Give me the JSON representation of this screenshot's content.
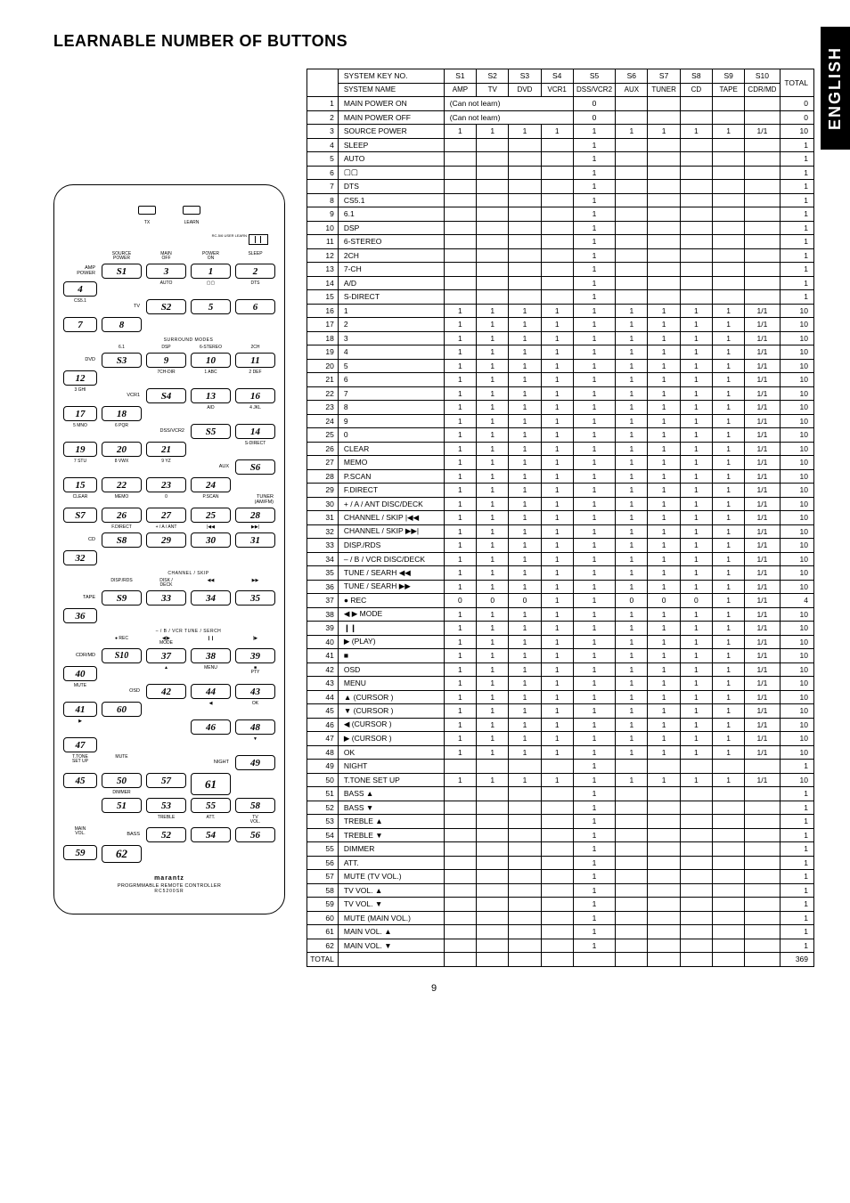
{
  "page_title": "LEARNABLE NUMBER OF BUTTONS",
  "language_tab": "ENGLISH",
  "page_number": "9",
  "remote_logo": "marantz",
  "remote_sub": "PROGRMMABLE REMOTE CONTROLLER",
  "remote_model": "RC5200SR",
  "remote_led1": "TX",
  "remote_led2": "LEARN",
  "remote_lcd_side": "RC-5/6\nUSER\nLEARN",
  "sys_header": {
    "keyno": "SYSTEM KEY NO.",
    "name": "SYSTEM NAME"
  },
  "sys_cols_no": [
    "S1",
    "S2",
    "S3",
    "S4",
    "S5",
    "S6",
    "S7",
    "S8",
    "S9",
    "S10"
  ],
  "sys_cols_nm": [
    "AMP",
    "TV",
    "DVD",
    "VCR1",
    "DSS/VCR2",
    "AUX",
    "TUNER",
    "CD",
    "TAPE",
    "CDR/MD"
  ],
  "total_label": "TOTAL",
  "cannot_learn": "(Can not learn)",
  "grand_total": "369",
  "remote_grid": [
    {
      "side": "AMP\nPOWER",
      "hdrs": [
        "SOURCE\nPOWER",
        "MAIN\nOFF",
        "POWER\nON",
        "SLEEP"
      ],
      "btns": [
        "S1",
        "3",
        "1",
        "2",
        "4"
      ]
    },
    {
      "side": "TV",
      "hdrs": [
        "AUTO",
        "▢▢",
        "DTS",
        "CS5.1"
      ],
      "btns": [
        "S2",
        "5",
        "6",
        "7",
        "8"
      ]
    },
    {
      "side": "DVD",
      "band": "SURROUND MODES",
      "hdrs": [
        "6.1",
        "DSP",
        "6-STEREO",
        "2CH"
      ],
      "btns": [
        "S3",
        "9",
        "10",
        "11",
        "12"
      ]
    },
    {
      "side": "VCR1",
      "hdrs": [
        "7CH-DIR",
        "1 ABC",
        "2 DEF",
        "3 GHI"
      ],
      "btns": [
        "S4",
        "13",
        "16",
        "17",
        "18"
      ]
    },
    {
      "side": "DSS/VCR2",
      "hdrs": [
        "A/D",
        "4 JKL",
        "5 MNO",
        "6 PQR"
      ],
      "btns": [
        "S5",
        "14",
        "19",
        "20",
        "21"
      ]
    },
    {
      "side": "AUX",
      "hdrs": [
        "S-DIRECT",
        "7 STU",
        "8 VWX",
        "9 YZ"
      ],
      "btns": [
        "S6",
        "15",
        "22",
        "23",
        "24"
      ]
    },
    {
      "side": "TUNER\n(AM/FM)",
      "hdrs": [
        "CLEAR",
        "MEMO",
        "0",
        "P.SCAN"
      ],
      "btns": [
        "S7",
        "26",
        "27",
        "25",
        "28"
      ]
    },
    {
      "side": "CD",
      "hdrs": [
        "F.DIRECT",
        "+ / A / ANT",
        "|◀◀",
        "▶▶|"
      ],
      "btns": [
        "S8",
        "29",
        "30",
        "31",
        "32"
      ]
    },
    {
      "side": "TAPE",
      "band": "CHANNEL / SKIP",
      "hdrs": [
        "DISP./RDS",
        "DISK /\nDECK",
        "◀◀",
        "▶▶"
      ],
      "btns": [
        "S9",
        "33",
        "34",
        "35",
        "36"
      ]
    },
    {
      "side": "CDR/MD",
      "band": "– / B / VCR   TUNE / SERCH",
      "hdrs": [
        "● REC",
        "◀|▶\nMODE",
        "❙❙",
        "|▶"
      ],
      "btns": [
        "S10",
        "37",
        "38",
        "39",
        "40"
      ]
    },
    {
      "side": "OSD",
      "hdrs": [
        "▲",
        "MENU",
        "■\nPTY",
        "MUTE"
      ],
      "btns": [
        "42",
        "44",
        "43",
        "41",
        "60"
      ]
    },
    {
      "side": "",
      "hdrs": [
        "◀",
        "OK",
        "▶",
        ""
      ],
      "btns": [
        "46",
        "48",
        "47",
        "",
        ""
      ]
    },
    {
      "side": "NIGHT",
      "hdrs": [
        "▼",
        "T.TONE\nSET UP",
        "MUTE",
        ""
      ],
      "btns": [
        "49",
        "45",
        "50",
        "57",
        ""
      ],
      "tall": "61"
    },
    {
      "side": "",
      "hdrs": [
        "",
        "DIMMER",
        "",
        ""
      ],
      "btns": [
        "51",
        "53",
        "55",
        "58",
        ""
      ]
    },
    {
      "side": "BASS",
      "hdrs": [
        "TREBLE",
        "ATT.",
        "TV\nVOL.",
        "MAIN\nVOL."
      ],
      "btns": [
        "52",
        "54",
        "56",
        "59",
        ""
      ],
      "tall": "62"
    }
  ],
  "rows": [
    {
      "n": "1",
      "k": "MAIN POWER ON",
      "span": 4,
      "txt": "(Can not learn)",
      "c": [
        "",
        "",
        "",
        "",
        "0",
        "",
        "",
        "",
        "",
        ""
      ],
      "t": "0"
    },
    {
      "n": "2",
      "k": "MAIN POWER OFF",
      "span": 4,
      "txt": "(Can not learn)",
      "c": [
        "",
        "",
        "",
        "",
        "0",
        "",
        "",
        "",
        "",
        ""
      ],
      "t": "0"
    },
    {
      "n": "3",
      "k": "SOURCE POWER",
      "c": [
        "1",
        "1",
        "1",
        "1",
        "1",
        "1",
        "1",
        "1",
        "1",
        "1/1"
      ],
      "t": "10"
    },
    {
      "n": "4",
      "k": "SLEEP",
      "c": [
        "",
        "",
        "",
        "",
        "1",
        "",
        "",
        "",
        "",
        ""
      ],
      "t": "1"
    },
    {
      "n": "5",
      "k": "AUTO",
      "c": [
        "",
        "",
        "",
        "",
        "1",
        "",
        "",
        "",
        "",
        ""
      ],
      "t": "1"
    },
    {
      "n": "6",
      "k": "▢▢",
      "c": [
        "",
        "",
        "",
        "",
        "1",
        "",
        "",
        "",
        "",
        ""
      ],
      "t": "1"
    },
    {
      "n": "7",
      "k": "DTS",
      "c": [
        "",
        "",
        "",
        "",
        "1",
        "",
        "",
        "",
        "",
        ""
      ],
      "t": "1"
    },
    {
      "n": "8",
      "k": "CS5.1",
      "c": [
        "",
        "",
        "",
        "",
        "1",
        "",
        "",
        "",
        "",
        ""
      ],
      "t": "1"
    },
    {
      "n": "9",
      "k": "6.1",
      "c": [
        "",
        "",
        "",
        "",
        "1",
        "",
        "",
        "",
        "",
        ""
      ],
      "t": "1"
    },
    {
      "n": "10",
      "k": "DSP",
      "c": [
        "",
        "",
        "",
        "",
        "1",
        "",
        "",
        "",
        "",
        ""
      ],
      "t": "1"
    },
    {
      "n": "11",
      "k": "6-STEREO",
      "c": [
        "",
        "",
        "",
        "",
        "1",
        "",
        "",
        "",
        "",
        ""
      ],
      "t": "1"
    },
    {
      "n": "12",
      "k": "2CH",
      "c": [
        "",
        "",
        "",
        "",
        "1",
        "",
        "",
        "",
        "",
        ""
      ],
      "t": "1"
    },
    {
      "n": "13",
      "k": "7-CH",
      "c": [
        "",
        "",
        "",
        "",
        "1",
        "",
        "",
        "",
        "",
        ""
      ],
      "t": "1"
    },
    {
      "n": "14",
      "k": "A/D",
      "c": [
        "",
        "",
        "",
        "",
        "1",
        "",
        "",
        "",
        "",
        ""
      ],
      "t": "1"
    },
    {
      "n": "15",
      "k": "S-DIRECT",
      "c": [
        "",
        "",
        "",
        "",
        "1",
        "",
        "",
        "",
        "",
        ""
      ],
      "t": "1"
    },
    {
      "n": "16",
      "k": "1",
      "c": [
        "1",
        "1",
        "1",
        "1",
        "1",
        "1",
        "1",
        "1",
        "1",
        "1/1"
      ],
      "t": "10"
    },
    {
      "n": "17",
      "k": "2",
      "c": [
        "1",
        "1",
        "1",
        "1",
        "1",
        "1",
        "1",
        "1",
        "1",
        "1/1"
      ],
      "t": "10"
    },
    {
      "n": "18",
      "k": "3",
      "c": [
        "1",
        "1",
        "1",
        "1",
        "1",
        "1",
        "1",
        "1",
        "1",
        "1/1"
      ],
      "t": "10"
    },
    {
      "n": "19",
      "k": "4",
      "c": [
        "1",
        "1",
        "1",
        "1",
        "1",
        "1",
        "1",
        "1",
        "1",
        "1/1"
      ],
      "t": "10"
    },
    {
      "n": "20",
      "k": "5",
      "c": [
        "1",
        "1",
        "1",
        "1",
        "1",
        "1",
        "1",
        "1",
        "1",
        "1/1"
      ],
      "t": "10"
    },
    {
      "n": "21",
      "k": "6",
      "c": [
        "1",
        "1",
        "1",
        "1",
        "1",
        "1",
        "1",
        "1",
        "1",
        "1/1"
      ],
      "t": "10"
    },
    {
      "n": "22",
      "k": "7",
      "c": [
        "1",
        "1",
        "1",
        "1",
        "1",
        "1",
        "1",
        "1",
        "1",
        "1/1"
      ],
      "t": "10"
    },
    {
      "n": "23",
      "k": "8",
      "c": [
        "1",
        "1",
        "1",
        "1",
        "1",
        "1",
        "1",
        "1",
        "1",
        "1/1"
      ],
      "t": "10"
    },
    {
      "n": "24",
      "k": "9",
      "c": [
        "1",
        "1",
        "1",
        "1",
        "1",
        "1",
        "1",
        "1",
        "1",
        "1/1"
      ],
      "t": "10"
    },
    {
      "n": "25",
      "k": "0",
      "c": [
        "1",
        "1",
        "1",
        "1",
        "1",
        "1",
        "1",
        "1",
        "1",
        "1/1"
      ],
      "t": "10"
    },
    {
      "n": "26",
      "k": "CLEAR",
      "c": [
        "1",
        "1",
        "1",
        "1",
        "1",
        "1",
        "1",
        "1",
        "1",
        "1/1"
      ],
      "t": "10"
    },
    {
      "n": "27",
      "k": "MEMO",
      "c": [
        "1",
        "1",
        "1",
        "1",
        "1",
        "1",
        "1",
        "1",
        "1",
        "1/1"
      ],
      "t": "10"
    },
    {
      "n": "28",
      "k": "P.SCAN",
      "c": [
        "1",
        "1",
        "1",
        "1",
        "1",
        "1",
        "1",
        "1",
        "1",
        "1/1"
      ],
      "t": "10"
    },
    {
      "n": "29",
      "k": "F.DIRECT",
      "c": [
        "1",
        "1",
        "1",
        "1",
        "1",
        "1",
        "1",
        "1",
        "1",
        "1/1"
      ],
      "t": "10"
    },
    {
      "n": "30",
      "k": "+ / A / ANT  DISC/DECK",
      "c": [
        "1",
        "1",
        "1",
        "1",
        "1",
        "1",
        "1",
        "1",
        "1",
        "1/1"
      ],
      "t": "10"
    },
    {
      "n": "31",
      "k": "CHANNEL / SKIP |◀◀",
      "c": [
        "1",
        "1",
        "1",
        "1",
        "1",
        "1",
        "1",
        "1",
        "1",
        "1/1"
      ],
      "t": "10"
    },
    {
      "n": "32",
      "k": "CHANNEL / SKIP ▶▶|",
      "c": [
        "1",
        "1",
        "1",
        "1",
        "1",
        "1",
        "1",
        "1",
        "1",
        "1/1"
      ],
      "t": "10"
    },
    {
      "n": "33",
      "k": "DISP./RDS",
      "c": [
        "1",
        "1",
        "1",
        "1",
        "1",
        "1",
        "1",
        "1",
        "1",
        "1/1"
      ],
      "t": "10"
    },
    {
      "n": "34",
      "k": "– / B / VCR  DISC/DECK",
      "c": [
        "1",
        "1",
        "1",
        "1",
        "1",
        "1",
        "1",
        "1",
        "1",
        "1/1"
      ],
      "t": "10"
    },
    {
      "n": "35",
      "k": "TUNE / SEARH ◀◀",
      "c": [
        "1",
        "1",
        "1",
        "1",
        "1",
        "1",
        "1",
        "1",
        "1",
        "1/1"
      ],
      "t": "10"
    },
    {
      "n": "36",
      "k": "TUNE / SEARH ▶▶",
      "c": [
        "1",
        "1",
        "1",
        "1",
        "1",
        "1",
        "1",
        "1",
        "1",
        "1/1"
      ],
      "t": "10"
    },
    {
      "n": "37",
      "k": "● REC",
      "c": [
        "0",
        "0",
        "0",
        "1",
        "1",
        "0",
        "0",
        "0",
        "1",
        "1/1"
      ],
      "t": "4"
    },
    {
      "n": "38",
      "k": "◀ ▶ MODE",
      "c": [
        "1",
        "1",
        "1",
        "1",
        "1",
        "1",
        "1",
        "1",
        "1",
        "1/1"
      ],
      "t": "10"
    },
    {
      "n": "39",
      "k": "❙❙",
      "c": [
        "1",
        "1",
        "1",
        "1",
        "1",
        "1",
        "1",
        "1",
        "1",
        "1/1"
      ],
      "t": "10"
    },
    {
      "n": "40",
      "k": "▶ (PLAY)",
      "c": [
        "1",
        "1",
        "1",
        "1",
        "1",
        "1",
        "1",
        "1",
        "1",
        "1/1"
      ],
      "t": "10"
    },
    {
      "n": "41",
      "k": "■",
      "c": [
        "1",
        "1",
        "1",
        "1",
        "1",
        "1",
        "1",
        "1",
        "1",
        "1/1"
      ],
      "t": "10"
    },
    {
      "n": "42",
      "k": "OSD",
      "c": [
        "1",
        "1",
        "1",
        "1",
        "1",
        "1",
        "1",
        "1",
        "1",
        "1/1"
      ],
      "t": "10"
    },
    {
      "n": "43",
      "k": "MENU",
      "c": [
        "1",
        "1",
        "1",
        "1",
        "1",
        "1",
        "1",
        "1",
        "1",
        "1/1"
      ],
      "t": "10"
    },
    {
      "n": "44",
      "k": "▲ (CURSOR )",
      "c": [
        "1",
        "1",
        "1",
        "1",
        "1",
        "1",
        "1",
        "1",
        "1",
        "1/1"
      ],
      "t": "10"
    },
    {
      "n": "45",
      "k": "▼ (CURSOR )",
      "c": [
        "1",
        "1",
        "1",
        "1",
        "1",
        "1",
        "1",
        "1",
        "1",
        "1/1"
      ],
      "t": "10"
    },
    {
      "n": "46",
      "k": "◀ (CURSOR )",
      "c": [
        "1",
        "1",
        "1",
        "1",
        "1",
        "1",
        "1",
        "1",
        "1",
        "1/1"
      ],
      "t": "10"
    },
    {
      "n": "47",
      "k": "▶ (CURSOR )",
      "c": [
        "1",
        "1",
        "1",
        "1",
        "1",
        "1",
        "1",
        "1",
        "1",
        "1/1"
      ],
      "t": "10"
    },
    {
      "n": "48",
      "k": "OK",
      "c": [
        "1",
        "1",
        "1",
        "1",
        "1",
        "1",
        "1",
        "1",
        "1",
        "1/1"
      ],
      "t": "10"
    },
    {
      "n": "49",
      "k": "NIGHT",
      "c": [
        "",
        "",
        "",
        "",
        "1",
        "",
        "",
        "",
        "",
        ""
      ],
      "t": "1"
    },
    {
      "n": "50",
      "k": "T.TONE  SET UP",
      "c": [
        "1",
        "1",
        "1",
        "1",
        "1",
        "1",
        "1",
        "1",
        "1",
        "1/1"
      ],
      "t": "10"
    },
    {
      "n": "51",
      "k": "BASS ▲",
      "c": [
        "",
        "",
        "",
        "",
        "1",
        "",
        "",
        "",
        "",
        ""
      ],
      "t": "1"
    },
    {
      "n": "52",
      "k": "BASS ▼",
      "c": [
        "",
        "",
        "",
        "",
        "1",
        "",
        "",
        "",
        "",
        ""
      ],
      "t": "1"
    },
    {
      "n": "53",
      "k": "TREBLE ▲",
      "c": [
        "",
        "",
        "",
        "",
        "1",
        "",
        "",
        "",
        "",
        ""
      ],
      "t": "1"
    },
    {
      "n": "54",
      "k": "TREBLE ▼",
      "c": [
        "",
        "",
        "",
        "",
        "1",
        "",
        "",
        "",
        "",
        ""
      ],
      "t": "1"
    },
    {
      "n": "55",
      "k": "DIMMER",
      "c": [
        "",
        "",
        "",
        "",
        "1",
        "",
        "",
        "",
        "",
        ""
      ],
      "t": "1"
    },
    {
      "n": "56",
      "k": "ATT.",
      "c": [
        "",
        "",
        "",
        "",
        "1",
        "",
        "",
        "",
        "",
        ""
      ],
      "t": "1"
    },
    {
      "n": "57",
      "k": "MUTE  (TV VOL.)",
      "c": [
        "",
        "",
        "",
        "",
        "1",
        "",
        "",
        "",
        "",
        ""
      ],
      "t": "1"
    },
    {
      "n": "58",
      "k": "TV VOL. ▲",
      "c": [
        "",
        "",
        "",
        "",
        "1",
        "",
        "",
        "",
        "",
        ""
      ],
      "t": "1"
    },
    {
      "n": "59",
      "k": "TV VOL. ▼",
      "c": [
        "",
        "",
        "",
        "",
        "1",
        "",
        "",
        "",
        "",
        ""
      ],
      "t": "1"
    },
    {
      "n": "60",
      "k": "MUTE  (MAIN VOL.)",
      "c": [
        "",
        "",
        "",
        "",
        "1",
        "",
        "",
        "",
        "",
        ""
      ],
      "t": "1"
    },
    {
      "n": "61",
      "k": "MAIN VOL. ▲",
      "c": [
        "",
        "",
        "",
        "",
        "1",
        "",
        "",
        "",
        "",
        ""
      ],
      "t": "1"
    },
    {
      "n": "62",
      "k": "MAIN VOL. ▼",
      "c": [
        "",
        "",
        "",
        "",
        "1",
        "",
        "",
        "",
        "",
        ""
      ],
      "t": "1"
    }
  ]
}
